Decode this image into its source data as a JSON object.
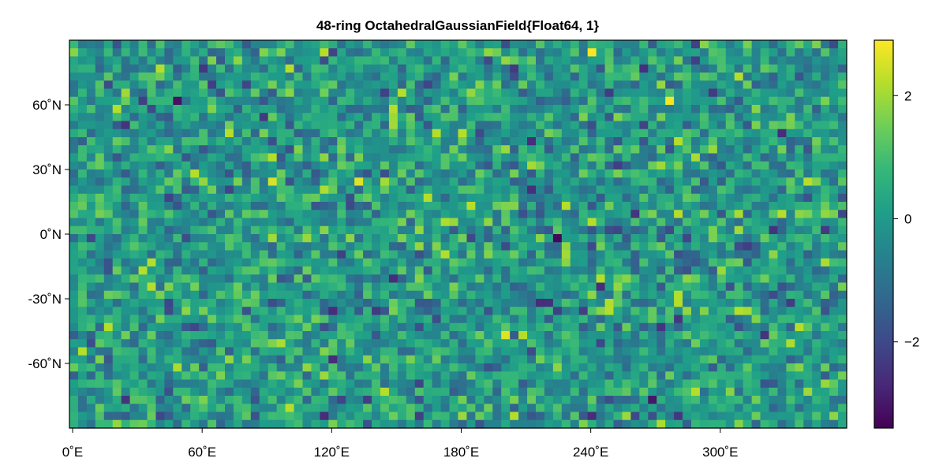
{
  "chart_data": {
    "type": "heatmap",
    "title": "48-ring OctahedralGaussianField{Float64, 1}",
    "xlabel": "",
    "ylabel": "",
    "x_range": [
      0,
      360
    ],
    "y_range": [
      -90,
      90
    ],
    "x_ticks": [
      {
        "value": 0,
        "label": "0˚E"
      },
      {
        "value": 60,
        "label": "60˚E"
      },
      {
        "value": 120,
        "label": "120˚E"
      },
      {
        "value": 180,
        "label": "180˚E"
      },
      {
        "value": 240,
        "label": "240˚E"
      },
      {
        "value": 300,
        "label": "300˚E"
      }
    ],
    "y_ticks": [
      {
        "value": 60,
        "label": "60˚N"
      },
      {
        "value": 30,
        "label": "30˚N"
      },
      {
        "value": 0,
        "label": "0˚N"
      },
      {
        "value": -30,
        "label": "-30˚N"
      },
      {
        "value": -60,
        "label": "-60˚N"
      }
    ],
    "colorbar": {
      "colormap": "viridis",
      "range": [
        -3.4,
        2.9
      ],
      "ticks": [
        {
          "value": 2,
          "label": "2"
        },
        {
          "value": 0,
          "label": "0"
        },
        {
          "value": -2,
          "label": "−2"
        }
      ]
    },
    "grid": {
      "rings": 48,
      "columns": 90,
      "distribution": "random normal field, mean 0, std ≈ 1"
    },
    "notable_cells": [
      {
        "lon": 240,
        "lat": 85,
        "value": 2.9
      },
      {
        "lon": 278,
        "lat": 62,
        "value": 2.8
      },
      {
        "lon": 52,
        "lat": 62,
        "value": -3.1
      },
      {
        "lon": 225,
        "lat": -1,
        "value": -3.3
      },
      {
        "lon": 268,
        "lat": -76,
        "value": -3.0
      },
      {
        "lon": 200,
        "lat": -46,
        "value": 2.6
      },
      {
        "lon": 135,
        "lat": 24,
        "value": 2.6
      },
      {
        "lon": 95,
        "lat": 24,
        "value": 2.5
      }
    ],
    "colors": {
      "viridis": [
        "#440154",
        "#482878",
        "#3e4989",
        "#31688e",
        "#26828e",
        "#1f9e89",
        "#35b779",
        "#6ece58",
        "#b5de2b",
        "#fde725"
      ],
      "frame": "#000000",
      "background": "#ffffff"
    }
  }
}
